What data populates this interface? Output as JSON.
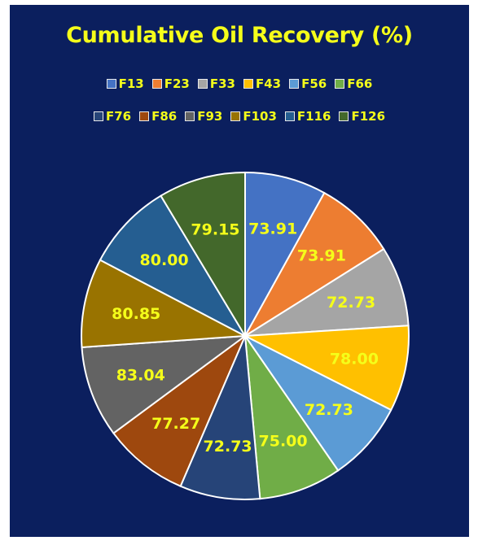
{
  "chart_data": {
    "type": "pie",
    "title": "Cumulative Oil Recovery (%)",
    "categories": [
      "F13",
      "F23",
      "F33",
      "F43",
      "F56",
      "F66",
      "F76",
      "F86",
      "F93",
      "F103",
      "F116",
      "F126"
    ],
    "values": [
      73.91,
      73.91,
      72.73,
      78.0,
      72.73,
      75.0,
      72.73,
      77.27,
      83.04,
      80.85,
      80.0,
      79.15
    ],
    "labels": [
      "73.91",
      "73.91",
      "72.73",
      "78.00",
      "72.73",
      "75.00",
      "72.73",
      "77.27",
      "83.04",
      "80.85",
      "80.00",
      "79.15"
    ],
    "colors": [
      "#4472c4",
      "#ed7d31",
      "#a5a5a5",
      "#ffc000",
      "#5b9bd5",
      "#70ad47",
      "#264478",
      "#9e480e",
      "#636363",
      "#997300",
      "#255e91",
      "#43682b"
    ],
    "legend": "top",
    "slice_border_color": "#ffffff"
  }
}
